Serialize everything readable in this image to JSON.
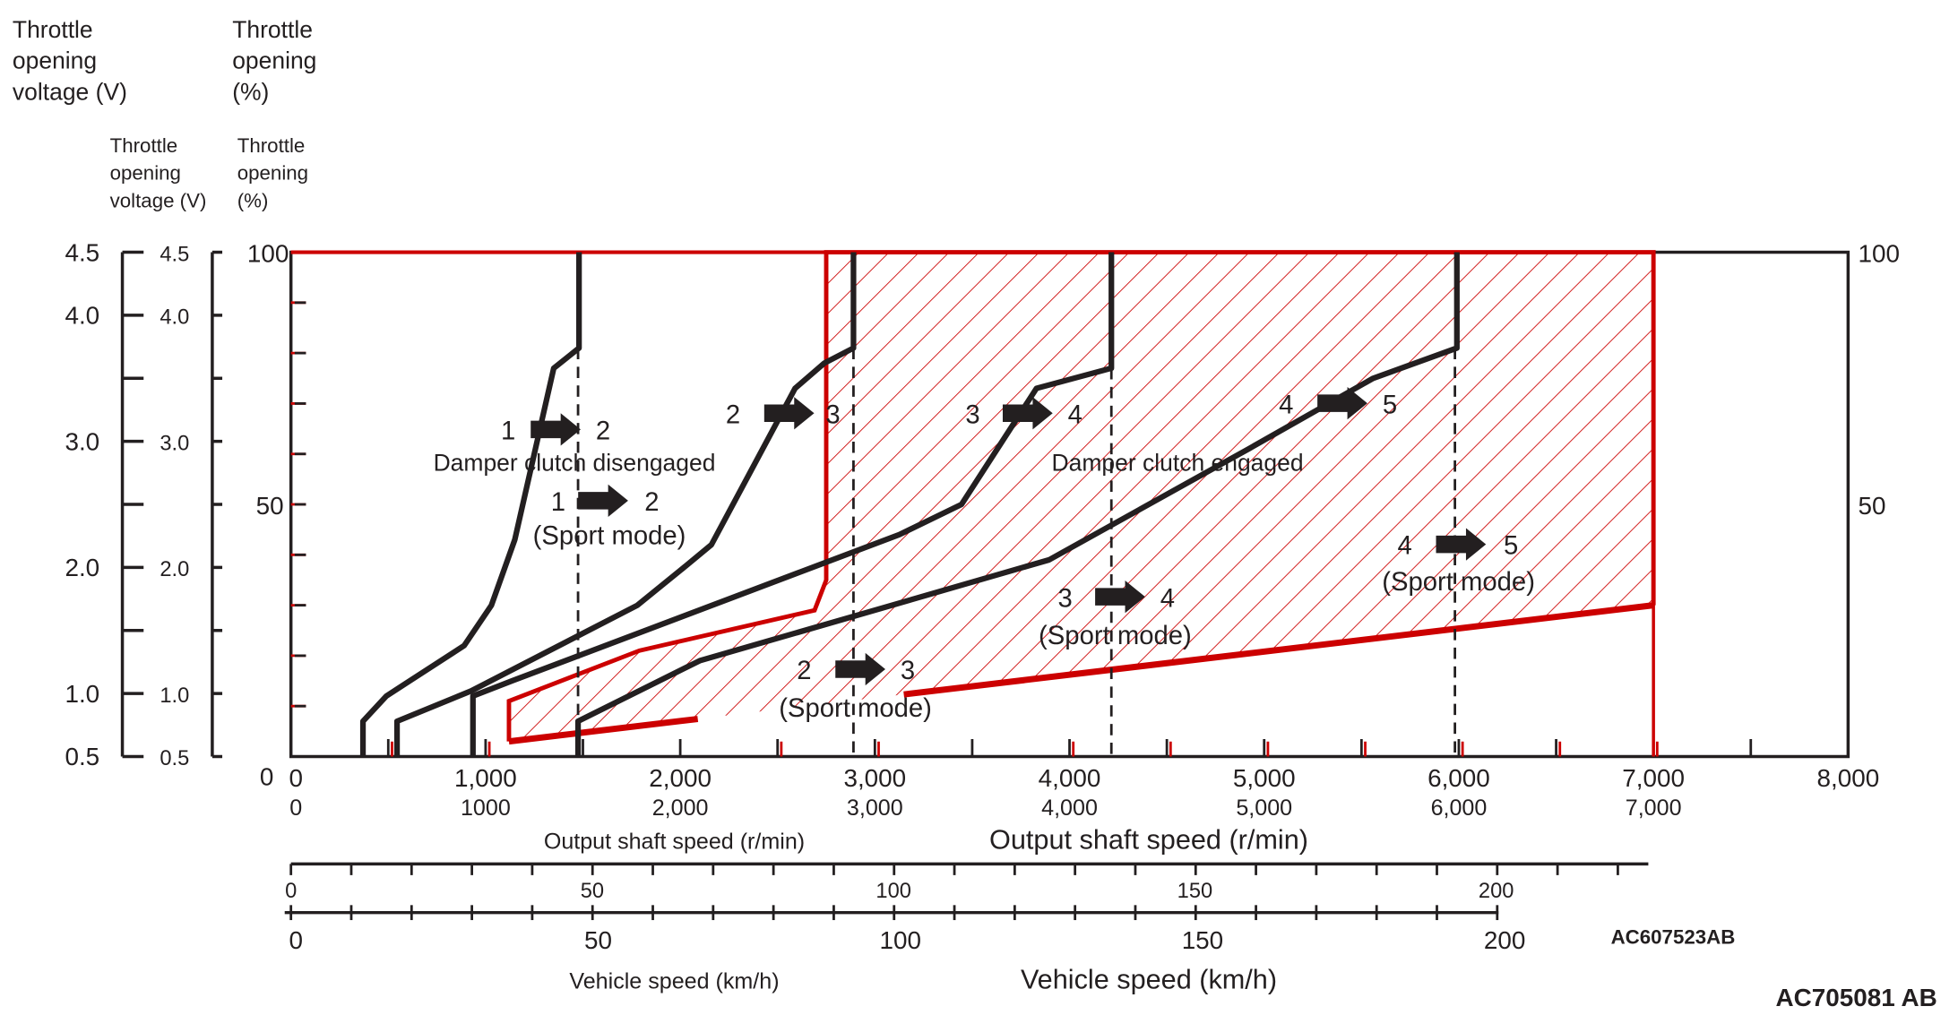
{
  "colors": {
    "engaged_region": "#cc0000",
    "shift_lines": "#231f20",
    "background": "#ffffff"
  },
  "left_axes": {
    "voltage_title_large": [
      "Throttle",
      "opening",
      "voltage (V)"
    ],
    "voltage_title_small": [
      "Throttle",
      "opening",
      "voltage (V)"
    ],
    "percent_title_large": [
      "Throttle",
      "opening",
      "(%)"
    ],
    "percent_title_small": [
      "Throttle",
      "opening",
      "(%)"
    ],
    "voltage_ticks": [
      "4.5",
      "4.0",
      "3.0",
      "2.0",
      "1.0",
      "0.5"
    ],
    "percent_ticks": [
      "100",
      "50",
      "0"
    ]
  },
  "x_axis": {
    "label": "Output shaft speed (r/min)",
    "ticks": [
      "0",
      "1,000",
      "2,000",
      "3,000",
      "4,000",
      "5,000",
      "6,000",
      "7,000",
      "8,000"
    ],
    "ticks_overlay": [
      "0",
      "1000",
      "2,000",
      "3,000",
      "4,000",
      "5,000",
      "6,000",
      "7,000"
    ]
  },
  "vehicle_speed_axis": {
    "label": "Vehicle speed (km/h)",
    "ticks": [
      "0",
      "50",
      "100",
      "150",
      "200"
    ]
  },
  "region_labels": {
    "disengaged": "Damper clutch disengaged",
    "engaged": "Damper clutch engaged"
  },
  "shift_annotations": [
    {
      "from": "1",
      "to": "2",
      "mode": ""
    },
    {
      "from": "2",
      "to": "3",
      "mode": ""
    },
    {
      "from": "3",
      "to": "4",
      "mode": ""
    },
    {
      "from": "4",
      "to": "5",
      "mode": ""
    },
    {
      "from": "1",
      "to": "2",
      "mode": "(Sport mode)"
    },
    {
      "from": "2",
      "to": "3",
      "mode": "(Sport mode)"
    },
    {
      "from": "3",
      "to": "4",
      "mode": "(Sport mode)"
    },
    {
      "from": "4",
      "to": "5",
      "mode": "(Sport mode)"
    }
  ],
  "figure_codes": [
    "AC607523AB",
    "AC705081 AB"
  ],
  "chart_data": {
    "type": "line",
    "xlabel": "Output shaft speed (r/min)",
    "ylabel": "Throttle opening (%)",
    "secondary_ylabel": "Throttle opening voltage (V)",
    "secondary_xlabel": "Vehicle speed (km/h)",
    "xlim": [
      0,
      8000
    ],
    "ylim": [
      0,
      100
    ],
    "voltage_lim": [
      0.5,
      4.5
    ],
    "vehicle_speed_ticks": [
      0,
      50,
      100,
      150,
      200
    ],
    "grid": false,
    "series": [
      {
        "name": "1 → 2",
        "points": [
          [
            370,
            0
          ],
          [
            370,
            7
          ],
          [
            490,
            12
          ],
          [
            890,
            22
          ],
          [
            1030,
            30
          ],
          [
            1150,
            43
          ],
          [
            1350,
            77
          ],
          [
            1480,
            81
          ],
          [
            1480,
            100
          ]
        ]
      },
      {
        "name": "2 → 3",
        "points": [
          [
            545,
            0
          ],
          [
            545,
            7
          ],
          [
            925,
            13
          ],
          [
            1780,
            30
          ],
          [
            2035,
            38
          ],
          [
            2160,
            42
          ],
          [
            2590,
            73
          ],
          [
            2740,
            78
          ],
          [
            2890,
            81
          ],
          [
            2890,
            100
          ]
        ]
      },
      {
        "name": "3 → 4",
        "points": [
          [
            935,
            0
          ],
          [
            935,
            12
          ],
          [
            1135,
            15
          ],
          [
            3125,
            44
          ],
          [
            3445,
            50
          ],
          [
            3830,
            73
          ],
          [
            4215,
            77
          ],
          [
            4215,
            100
          ]
        ]
      },
      {
        "name": "4 → 5",
        "points": [
          [
            1475,
            0
          ],
          [
            1475,
            7
          ],
          [
            2100,
            19
          ],
          [
            3895,
            39
          ],
          [
            4920,
            61
          ],
          [
            5560,
            75
          ],
          [
            5990,
            81
          ],
          [
            5990,
            100
          ]
        ]
      }
    ],
    "sport_mode_shift_speeds": [
      {
        "name": "1 → 2 (Sport mode)",
        "x": 1475,
        "y_from": 0,
        "y_to": 81
      },
      {
        "name": "2 → 3 (Sport mode)",
        "x": 2890,
        "y_from": 0,
        "y_to": 81
      },
      {
        "name": "3 → 4 (Sport mode)",
        "x": 4215,
        "y_from": 0,
        "y_to": 77
      },
      {
        "name": "4 → 5 (Sport mode)",
        "x": 5980,
        "y_from": 0,
        "y_to": 81
      }
    ],
    "damper_clutch_engaged_region": [
      [
        1120,
        3
      ],
      [
        1120,
        11
      ],
      [
        1790,
        21
      ],
      [
        2690,
        29
      ],
      [
        2750,
        35
      ],
      [
        2750,
        100
      ],
      [
        7000,
        100
      ],
      [
        7000,
        30
      ],
      [
        1120,
        3
      ]
    ]
  }
}
